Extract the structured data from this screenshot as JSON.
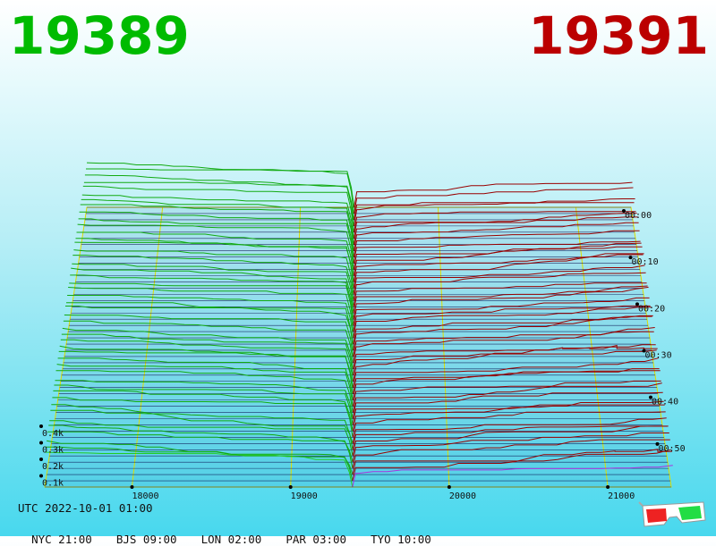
{
  "bid_price": "19389",
  "ask_price": "19391",
  "colors": {
    "bid": "#00bb00",
    "ask": "#bb0000",
    "bid_line": "#11aa11",
    "ask_line": "#990000",
    "frame": "#dddd00",
    "latest_bid": "#22cc22",
    "latest_ask": "#aa33dd",
    "base": "#000044"
  },
  "clock": {
    "utc_label": "UTC",
    "utc_time": "2022-10-01 01:00",
    "zones": [
      {
        "name": "NYC",
        "time": "21:00"
      },
      {
        "name": "BJS",
        "time": "09:00"
      },
      {
        "name": "LON",
        "time": "02:00"
      },
      {
        "name": "PAR",
        "time": "03:00"
      },
      {
        "name": "TYO",
        "time": "10:00"
      }
    ]
  },
  "icons": {
    "glasses": "3d-glasses-icon"
  },
  "chart_data": {
    "type": "area",
    "x_tick_labels": [
      "18000",
      "19000",
      "20000",
      "21000"
    ],
    "x_ticks": [
      18000,
      19000,
      20000,
      21000
    ],
    "xlim": [
      17450,
      21400
    ],
    "mid_price": 19390,
    "volume_tick_labels": [
      "0.1k",
      "0.2k",
      "0.3k",
      "0.4k"
    ],
    "volume_ticks": [
      100,
      200,
      300,
      400
    ],
    "time_tick_labels": [
      "00:00",
      "00:10",
      "00:20",
      "00:30",
      "00:40",
      "00:50"
    ],
    "time_ticks": [
      0,
      10,
      20,
      30,
      40,
      50
    ],
    "time_range_minutes": [
      0,
      60
    ],
    "snapshots": 46,
    "series": [
      {
        "name": "bids",
        "side": "bid"
      },
      {
        "name": "asks",
        "side": "ask"
      }
    ],
    "grid": true
  }
}
